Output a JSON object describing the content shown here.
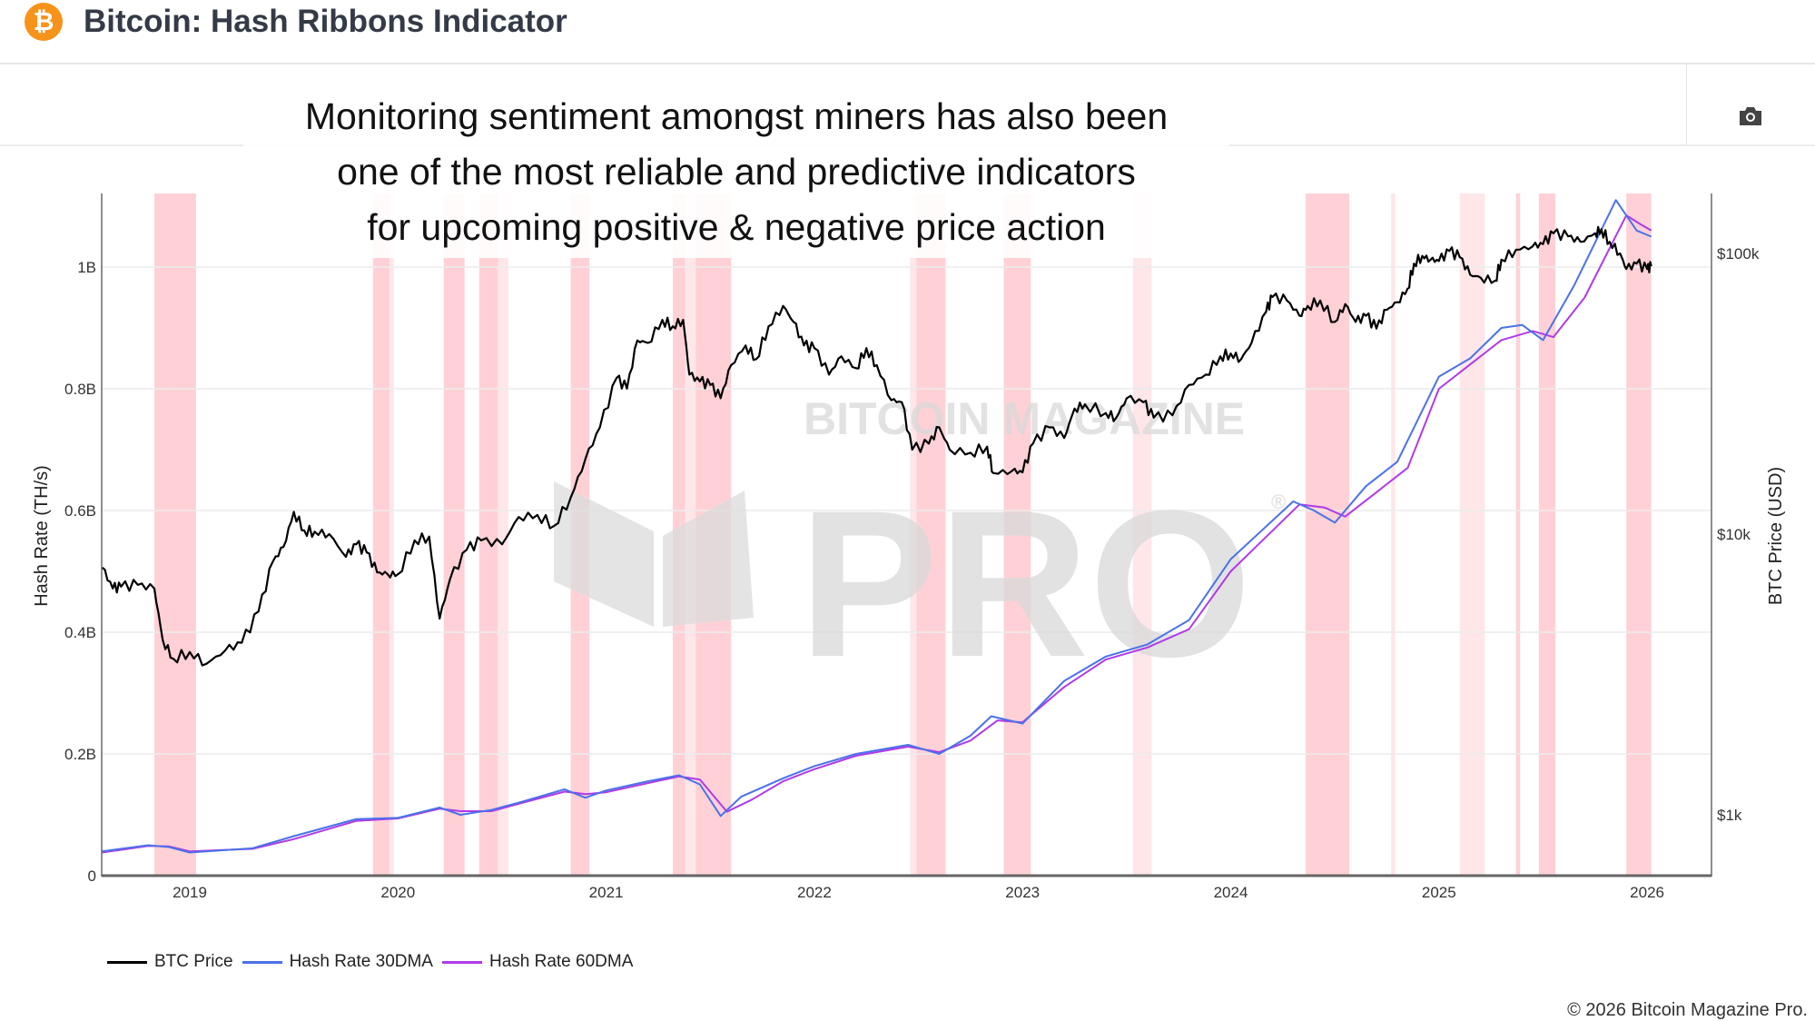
{
  "header": {
    "title": "Bitcoin: Hash Ribbons Indicator",
    "logo_symbol": "₿"
  },
  "annotation": {
    "lines": [
      "Monitoring sentiment amongst miners has also been",
      "one of the most reliable and predictive indicators",
      "for upcoming positive & negative price action"
    ]
  },
  "toolbar": {
    "camera_icon": "camera-icon"
  },
  "watermark": {
    "top": "BITCOIN MAGAZINE",
    "main": "PRO",
    "mark": "®"
  },
  "footer": {
    "copyright": "© 2026 Bitcoin Magazine Pro."
  },
  "colors": {
    "price": "#000000",
    "hr30": "#4a72e8",
    "hr60": "#b03ae8",
    "band": "#ffd1d6",
    "band_light": "#ffe6e9",
    "bitcoin": "#f7931a"
  },
  "chart_data": {
    "type": "line",
    "xlabel": "",
    "ylabel_left": "Hash Rate (TH/s)",
    "ylabel_right": "BTC Price (USD)",
    "x_range": [
      2018.58,
      2026.31
    ],
    "y_left_range": [
      0,
      1.119
    ],
    "y_right_range_log": [
      607,
      164000
    ],
    "x_ticks": [
      "2019",
      "2020",
      "2021",
      "2022",
      "2023",
      "2024",
      "2025",
      "2026"
    ],
    "y_left_ticks": [
      {
        "v": 0,
        "label": "0"
      },
      {
        "v": 0.2,
        "label": "0.2B"
      },
      {
        "v": 0.4,
        "label": "0.4B"
      },
      {
        "v": 0.6,
        "label": "0.6B"
      },
      {
        "v": 0.8,
        "label": "0.8B"
      },
      {
        "v": 1.0,
        "label": "1B"
      }
    ],
    "y_right_ticks": [
      {
        "v": 1000,
        "label": "$1k"
      },
      {
        "v": 10000,
        "label": "$10k"
      },
      {
        "v": 100000,
        "label": "$100k"
      }
    ],
    "grid": true,
    "legend_position": "bottom-left",
    "legend": [
      "BTC Price",
      "Hash Rate 30DMA",
      "Hash Rate 60DMA"
    ],
    "bands": [
      {
        "start": 2018.83,
        "end": 2019.03,
        "light": false
      },
      {
        "start": 2019.88,
        "end": 2019.96,
        "light": false
      },
      {
        "start": 2019.96,
        "end": 2019.98,
        "light": true
      },
      {
        "start": 2020.22,
        "end": 2020.32,
        "light": false
      },
      {
        "start": 2020.39,
        "end": 2020.48,
        "light": false
      },
      {
        "start": 2020.48,
        "end": 2020.53,
        "light": true
      },
      {
        "start": 2020.83,
        "end": 2020.92,
        "light": false
      },
      {
        "start": 2021.32,
        "end": 2021.38,
        "light": false
      },
      {
        "start": 2021.38,
        "end": 2021.43,
        "light": true
      },
      {
        "start": 2021.43,
        "end": 2021.6,
        "light": false
      },
      {
        "start": 2022.46,
        "end": 2022.49,
        "light": true
      },
      {
        "start": 2022.49,
        "end": 2022.63,
        "light": false
      },
      {
        "start": 2022.91,
        "end": 2023.04,
        "light": false
      },
      {
        "start": 2023.53,
        "end": 2023.62,
        "light": true
      },
      {
        "start": 2024.36,
        "end": 2024.57,
        "light": false
      },
      {
        "start": 2024.77,
        "end": 2024.79,
        "light": true
      },
      {
        "start": 2025.1,
        "end": 2025.22,
        "light": true
      },
      {
        "start": 2025.37,
        "end": 2025.39,
        "light": false
      },
      {
        "start": 2025.48,
        "end": 2025.56,
        "light": false
      },
      {
        "start": 2025.9,
        "end": 2026.02,
        "light": false
      }
    ],
    "series": [
      {
        "name": "BTC Price",
        "axis": "right",
        "x": [
          2018.58,
          2018.63,
          2018.67,
          2018.75,
          2018.83,
          2018.87,
          2018.92,
          2019.0,
          2019.08,
          2019.17,
          2019.25,
          2019.33,
          2019.4,
          2019.45,
          2019.5,
          2019.55,
          2019.6,
          2019.67,
          2019.75,
          2019.8,
          2019.85,
          2019.9,
          2019.95,
          2020.0,
          2020.08,
          2020.15,
          2020.2,
          2020.25,
          2020.33,
          2020.4,
          2020.5,
          2020.58,
          2020.67,
          2020.75,
          2020.83,
          2020.9,
          2020.97,
          2021.05,
          2021.1,
          2021.15,
          2021.2,
          2021.27,
          2021.32,
          2021.37,
          2021.4,
          2021.45,
          2021.5,
          2021.55,
          2021.6,
          2021.67,
          2021.72,
          2021.78,
          2021.85,
          2021.9,
          2021.95,
          2022.0,
          2022.07,
          2022.13,
          2022.2,
          2022.25,
          2022.3,
          2022.37,
          2022.42,
          2022.47,
          2022.55,
          2022.6,
          2022.65,
          2022.75,
          2022.83,
          2022.86,
          2022.95,
          2023.0,
          2023.05,
          2023.13,
          2023.2,
          2023.25,
          2023.3,
          2023.4,
          2023.45,
          2023.5,
          2023.58,
          2023.63,
          2023.72,
          2023.8,
          2023.88,
          2023.95,
          2024.0,
          2024.05,
          2024.1,
          2024.17,
          2024.2,
          2024.27,
          2024.33,
          2024.37,
          2024.43,
          2024.5,
          2024.55,
          2024.6,
          2024.65,
          2024.7,
          2024.75,
          2024.8,
          2024.85,
          2024.88,
          2024.92,
          2024.96,
          2025.0,
          2025.05,
          2025.1,
          2025.15,
          2025.2,
          2025.27,
          2025.3,
          2025.37,
          2025.45,
          2025.5,
          2025.55,
          2025.62,
          2025.68,
          2025.75,
          2025.78,
          2025.82,
          2025.87,
          2025.9,
          2025.95,
          2026.0,
          2026.02
        ],
        "values": [
          7600,
          6400,
          6500,
          6600,
          6400,
          4200,
          3600,
          3800,
          3450,
          3850,
          4100,
          5300,
          8000,
          9000,
          12000,
          10300,
          10200,
          10000,
          8300,
          9200,
          8600,
          7300,
          7200,
          7200,
          9500,
          9800,
          5000,
          6900,
          8800,
          9500,
          9200,
          11500,
          11700,
          10700,
          13500,
          18500,
          24000,
          36000,
          33000,
          49000,
          48000,
          58000,
          55000,
          58000,
          37000,
          35000,
          34000,
          30500,
          40000,
          47000,
          42000,
          55000,
          65000,
          57000,
          47000,
          46000,
          37000,
          43000,
          39000,
          46000,
          40000,
          30000,
          29500,
          20000,
          21000,
          24000,
          20000,
          19500,
          20500,
          16500,
          16800,
          16600,
          21000,
          24000,
          22000,
          28000,
          29000,
          27000,
          26000,
          30500,
          29500,
          26000,
          26500,
          34000,
          37000,
          43000,
          44000,
          42000,
          48000,
          62000,
          70000,
          68000,
          60000,
          65000,
          68000,
          57000,
          66000,
          57000,
          60000,
          54000,
          63000,
          67000,
          75000,
          92000,
          98000,
          95000,
          94000,
          102000,
          97000,
          84000,
          82000,
          80000,
          95000,
          103000,
          106000,
          108000,
          118000,
          115000,
          110000,
          118000,
          122000,
          110000,
          100000,
          88000,
          92000,
          88000,
          90000
        ]
      },
      {
        "name": "Hash Rate 30DMA",
        "axis": "left",
        "x": [
          2018.58,
          2018.8,
          2018.9,
          2019.0,
          2019.3,
          2019.5,
          2019.8,
          2020.0,
          2020.2,
          2020.3,
          2020.45,
          2020.6,
          2020.8,
          2020.9,
          2021.0,
          2021.2,
          2021.35,
          2021.45,
          2021.55,
          2021.65,
          2021.85,
          2022.0,
          2022.2,
          2022.45,
          2022.6,
          2022.75,
          2022.85,
          2023.0,
          2023.2,
          2023.4,
          2023.6,
          2023.8,
          2024.0,
          2024.3,
          2024.4,
          2024.5,
          2024.65,
          2024.8,
          2025.0,
          2025.15,
          2025.3,
          2025.4,
          2025.5,
          2025.65,
          2025.85,
          2025.95,
          2026.02
        ],
        "values": [
          0.04,
          0.05,
          0.047,
          0.038,
          0.045,
          0.065,
          0.093,
          0.095,
          0.112,
          0.1,
          0.108,
          0.122,
          0.142,
          0.128,
          0.14,
          0.155,
          0.165,
          0.15,
          0.098,
          0.13,
          0.16,
          0.18,
          0.2,
          0.215,
          0.2,
          0.23,
          0.262,
          0.25,
          0.32,
          0.36,
          0.38,
          0.42,
          0.52,
          0.615,
          0.6,
          0.58,
          0.64,
          0.68,
          0.82,
          0.85,
          0.9,
          0.905,
          0.88,
          0.97,
          1.11,
          1.06,
          1.05
        ]
      },
      {
        "name": "Hash Rate 60DMA",
        "axis": "left",
        "x": [
          2018.58,
          2018.8,
          2018.9,
          2019.0,
          2019.3,
          2019.5,
          2019.8,
          2020.0,
          2020.2,
          2020.3,
          2020.45,
          2020.6,
          2020.8,
          2020.9,
          2021.0,
          2021.2,
          2021.35,
          2021.45,
          2021.58,
          2021.7,
          2021.85,
          2022.0,
          2022.2,
          2022.45,
          2022.6,
          2022.75,
          2022.88,
          2023.0,
          2023.2,
          2023.4,
          2023.6,
          2023.8,
          2024.0,
          2024.33,
          2024.45,
          2024.55,
          2024.7,
          2024.85,
          2025.0,
          2025.15,
          2025.3,
          2025.45,
          2025.55,
          2025.7,
          2025.9,
          2025.97,
          2026.02
        ],
        "values": [
          0.038,
          0.049,
          0.048,
          0.04,
          0.044,
          0.06,
          0.09,
          0.094,
          0.11,
          0.106,
          0.106,
          0.12,
          0.138,
          0.134,
          0.137,
          0.152,
          0.163,
          0.158,
          0.105,
          0.125,
          0.155,
          0.175,
          0.197,
          0.212,
          0.203,
          0.222,
          0.255,
          0.252,
          0.31,
          0.355,
          0.375,
          0.405,
          0.5,
          0.61,
          0.605,
          0.59,
          0.63,
          0.67,
          0.8,
          0.84,
          0.88,
          0.895,
          0.885,
          0.95,
          1.085,
          1.07,
          1.06
        ]
      }
    ]
  }
}
